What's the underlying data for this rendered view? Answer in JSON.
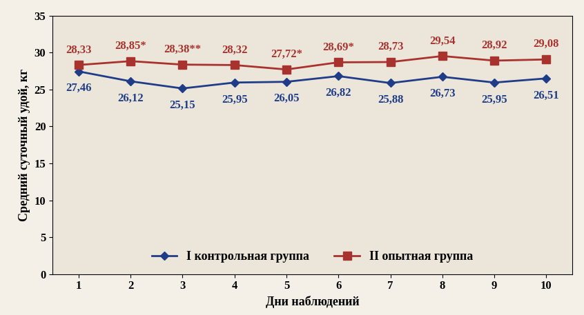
{
  "chart_data": {
    "type": "line",
    "x_label": "Дни наблюдений",
    "y_label": "Средний суточный удой, кг",
    "categories": [
      "1",
      "2",
      "3",
      "4",
      "5",
      "6",
      "7",
      "8",
      "9",
      "10"
    ],
    "series": [
      {
        "name": "I контрольная группа",
        "color": "#1f3c88",
        "marker": "diamond",
        "line_style": "solid",
        "values": [
          27.46,
          26.12,
          25.15,
          25.95,
          26.05,
          26.82,
          25.88,
          26.73,
          25.95,
          26.51
        ],
        "value_labels": [
          "27,46",
          "26,12",
          "25,15",
          "25,95",
          "26,05",
          "26,82",
          "25,88",
          "26,73",
          "25,95",
          "26,51"
        ]
      },
      {
        "name": "II опытная группа",
        "color": "#a8322d",
        "marker": "square",
        "line_style": "solid",
        "values": [
          28.33,
          28.85,
          28.38,
          28.32,
          27.72,
          28.69,
          28.73,
          29.54,
          28.92,
          29.08
        ],
        "value_labels": [
          "28,33",
          "28,85*",
          "28,38**",
          "28,32",
          "27,72*",
          "28,69*",
          "28,73",
          "29,54",
          "28,92",
          "29,08"
        ]
      }
    ],
    "ylim": [
      0,
      35
    ],
    "yticks": [
      0,
      5,
      10,
      15,
      20,
      25,
      30,
      35
    ],
    "grid": false,
    "legend": "lower center",
    "data_labels": true
  }
}
